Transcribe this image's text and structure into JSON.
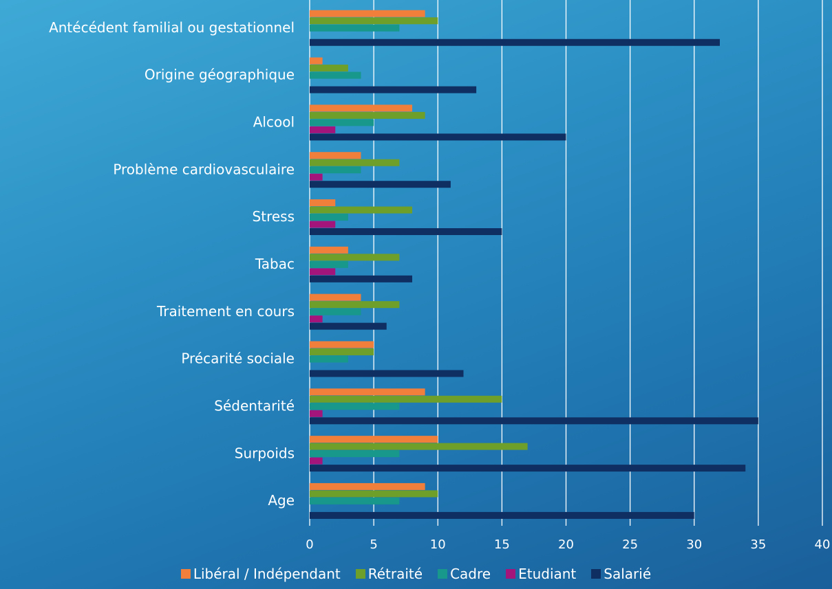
{
  "chart_data": {
    "type": "bar",
    "orientation": "horizontal",
    "categories": [
      "Antécédent familial ou gestationnel",
      "Origine géographique",
      "Alcool",
      "Problème cardiovasculaire",
      "Stress",
      "Tabac",
      "Traitement en cours",
      "Précarité sociale",
      "Sédentarité",
      "Surpoids",
      "Age"
    ],
    "series": [
      {
        "name": "Libéral / Indépendant",
        "color": "#f07f3c",
        "values": [
          9,
          1,
          8,
          4,
          2,
          3,
          4,
          5,
          9,
          10,
          9
        ]
      },
      {
        "name": "Rétraité",
        "color": "#6e9f2a",
        "values": [
          10,
          3,
          9,
          7,
          8,
          7,
          7,
          5,
          15,
          17,
          10
        ]
      },
      {
        "name": "Cadre",
        "color": "#17988a",
        "values": [
          7,
          4,
          5,
          4,
          3,
          3,
          4,
          3,
          7,
          7,
          7
        ]
      },
      {
        "name": "Etudiant",
        "color": "#a3157a",
        "values": [
          0,
          0,
          2,
          1,
          2,
          2,
          1,
          0,
          1,
          1,
          0
        ]
      },
      {
        "name": "Salarié",
        "color": "#0f2f62",
        "values": [
          32,
          13,
          20,
          11,
          15,
          8,
          6,
          12,
          35,
          34,
          30
        ]
      }
    ],
    "xlim": [
      0,
      40
    ],
    "xticks": [
      "0",
      "5",
      "10",
      "15",
      "20",
      "25",
      "30",
      "35",
      "40"
    ],
    "grid": true,
    "legend": "bottom"
  }
}
